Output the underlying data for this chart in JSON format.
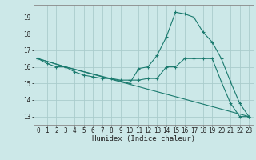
{
  "title": "",
  "xlabel": "Humidex (Indice chaleur)",
  "ylabel": "",
  "bg_color": "#cce8e8",
  "grid_color": "#aacccc",
  "line_color": "#1a7a6e",
  "xlim": [
    -0.5,
    23.5
  ],
  "ylim": [
    12.5,
    19.75
  ],
  "yticks": [
    13,
    14,
    15,
    16,
    17,
    18,
    19
  ],
  "xticks": [
    0,
    1,
    2,
    3,
    4,
    5,
    6,
    7,
    8,
    9,
    10,
    11,
    12,
    13,
    14,
    15,
    16,
    17,
    18,
    19,
    20,
    21,
    22,
    23
  ],
  "line1_x": [
    0,
    1,
    2,
    3,
    4,
    5,
    6,
    7,
    8,
    9,
    10,
    11,
    12,
    13,
    14,
    15,
    16,
    17,
    18,
    19,
    20,
    21,
    22,
    23
  ],
  "line1_y": [
    16.5,
    16.2,
    16.0,
    16.0,
    15.7,
    15.5,
    15.4,
    15.3,
    15.3,
    15.2,
    15.2,
    15.2,
    15.3,
    15.3,
    16.0,
    16.0,
    16.5,
    16.5,
    16.5,
    16.5,
    15.1,
    13.8,
    13.0,
    13.0
  ],
  "line2_x": [
    0,
    3,
    10,
    11,
    12,
    13,
    14,
    15,
    16,
    17,
    18,
    19,
    20,
    21,
    22,
    23
  ],
  "line2_y": [
    16.5,
    16.0,
    15.0,
    15.9,
    16.0,
    16.7,
    17.8,
    19.3,
    19.2,
    19.0,
    18.1,
    17.5,
    16.5,
    15.1,
    13.8,
    13.0
  ],
  "line3_x": [
    0,
    3,
    23
  ],
  "line3_y": [
    16.5,
    16.0,
    13.0
  ],
  "tick_fontsize": 5.5,
  "xlabel_fontsize": 6.5
}
